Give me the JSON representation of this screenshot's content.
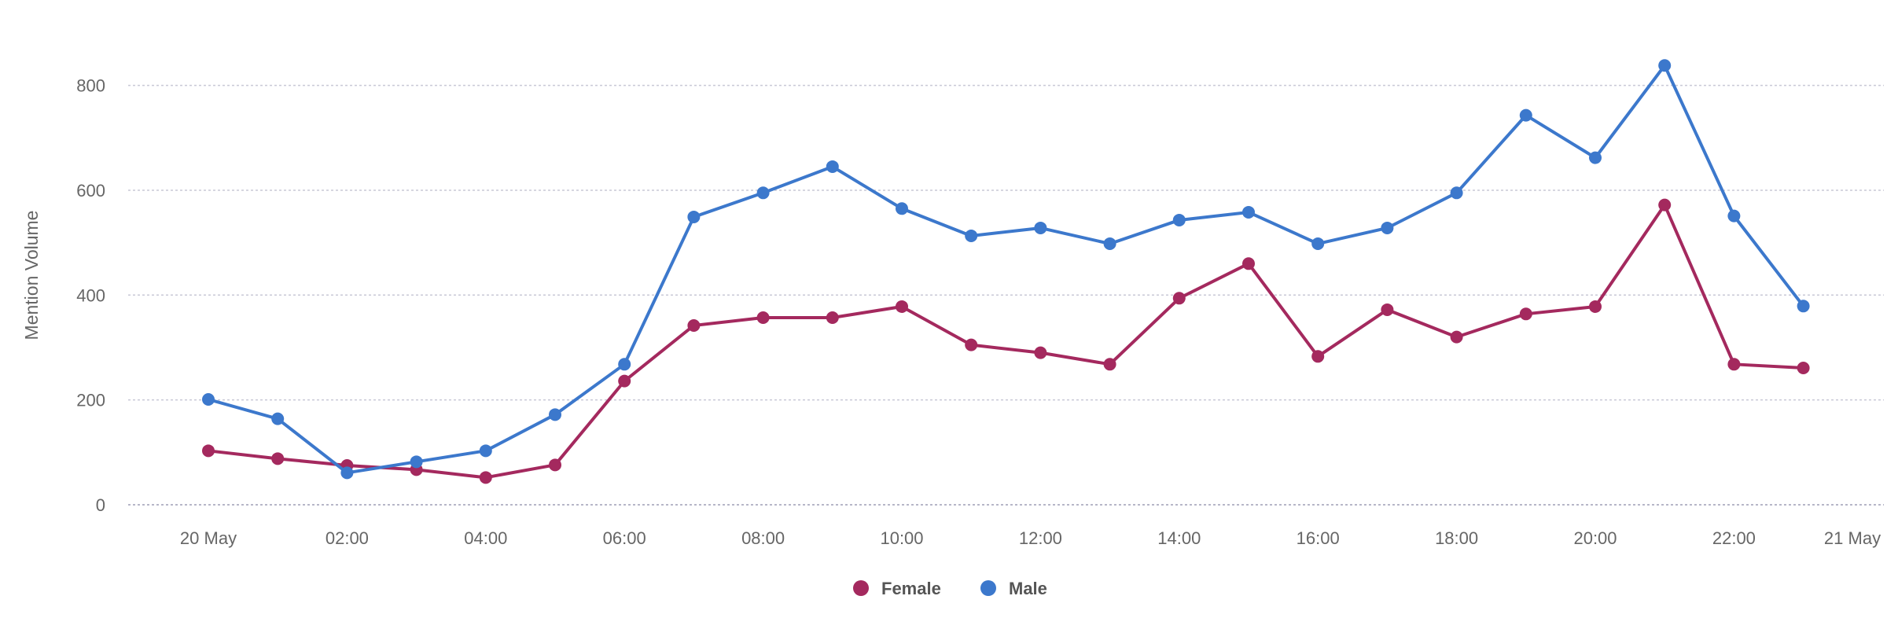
{
  "chart_data": {
    "type": "line",
    "title": "",
    "xlabel": "",
    "ylabel": "Mention Volume",
    "ylim": [
      0,
      900
    ],
    "y_ticks": [
      0,
      200,
      400,
      600,
      800
    ],
    "x": [
      "2020-05-20 00:00",
      "2020-05-20 01:00",
      "2020-05-20 02:00",
      "2020-05-20 03:00",
      "2020-05-20 04:00",
      "2020-05-20 05:00",
      "2020-05-20 06:00",
      "2020-05-20 07:00",
      "2020-05-20 08:00",
      "2020-05-20 09:00",
      "2020-05-20 10:00",
      "2020-05-20 11:00",
      "2020-05-20 12:00",
      "2020-05-20 13:00",
      "2020-05-20 14:00",
      "2020-05-20 15:00",
      "2020-05-20 16:00",
      "2020-05-20 17:00",
      "2020-05-20 18:00",
      "2020-05-20 19:00",
      "2020-05-20 20:00",
      "2020-05-20 21:00",
      "2020-05-20 22:00",
      "2020-05-20 23:00"
    ],
    "x_tick_labels": [
      "20 May",
      "02:00",
      "04:00",
      "06:00",
      "08:00",
      "10:00",
      "12:00",
      "14:00",
      "16:00",
      "18:00",
      "20:00",
      "22:00",
      "21 May"
    ],
    "grid": true,
    "legend_position": "bottom-center",
    "series": [
      {
        "name": "Female",
        "color": "#a4295e",
        "values": [
          103,
          88,
          75,
          67,
          52,
          76,
          236,
          342,
          357,
          357,
          378,
          305,
          290,
          268,
          394,
          460,
          283,
          372,
          320,
          364,
          378,
          572,
          268,
          261
        ]
      },
      {
        "name": "Male",
        "color": "#3c78cc",
        "values": [
          201,
          164,
          61,
          82,
          103,
          172,
          268,
          549,
          595,
          645,
          565,
          513,
          528,
          498,
          543,
          558,
          498,
          528,
          595,
          743,
          662,
          838,
          551,
          379
        ]
      }
    ]
  }
}
